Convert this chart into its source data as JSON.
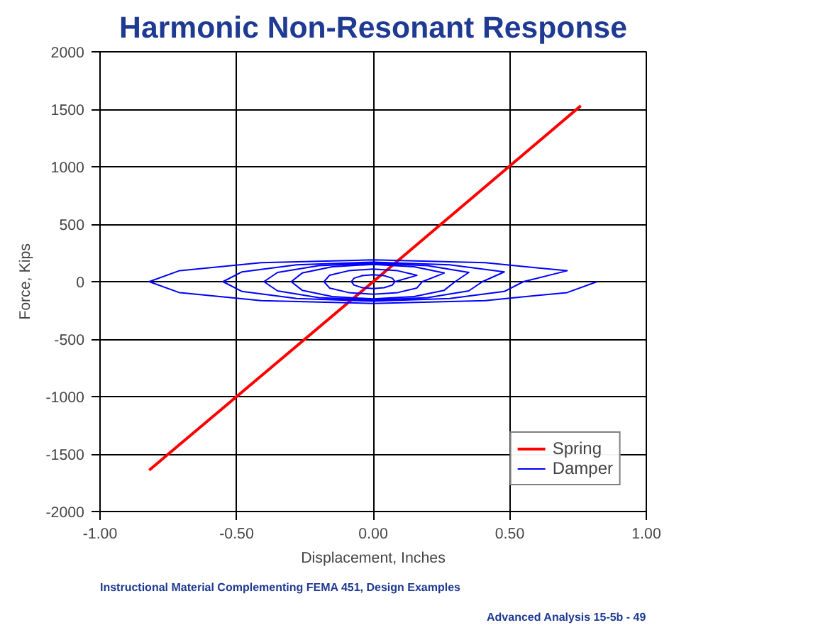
{
  "chart_data": {
    "type": "line",
    "title": "Harmonic Non-Resonant Response",
    "xlabel": "Displacement, Inches",
    "ylabel": "Force, Kips",
    "annotations": [
      "Instructional Material Complementing FEMA 451,  Design Examples",
      "Advanced Analysis 15-5b - 49"
    ],
    "xlim": [
      -1,
      1
    ],
    "ylim": [
      -2000,
      2000
    ],
    "xticks": [
      {
        "value": -1,
        "label": "-1.00"
      },
      {
        "value": -0.5,
        "label": "-0.50"
      },
      {
        "value": 0,
        "label": "0.00"
      },
      {
        "value": 0.5,
        "label": "0.50"
      },
      {
        "value": 1,
        "label": "1.00"
      }
    ],
    "yticks": [
      -2000,
      -1500,
      -1000,
      -500,
      0,
      500,
      1000,
      1500,
      2000
    ],
    "grid": true,
    "legend": "bottom right",
    "line_style": "solid",
    "marker": "none",
    "series": [
      {
        "name": "Spring",
        "color": "#ff0000",
        "x": [
          -0.82,
          0,
          0.76
        ],
        "values": [
          -1640,
          0,
          1530
        ]
      },
      {
        "name": "Damper",
        "color": "#0000ff",
        "x": [
          0.82,
          0.71,
          0.41,
          0,
          -0.41,
          -0.71,
          -0.82,
          -0.71,
          -0.41,
          0,
          0.41,
          0.71,
          0.55,
          0.48,
          0.28,
          0,
          -0.28,
          -0.48,
          -0.55,
          -0.48,
          -0.28,
          0,
          0.28,
          0.48,
          0.4,
          0.35,
          0.2,
          0,
          -0.2,
          -0.35,
          -0.4,
          -0.35,
          -0.2,
          0,
          0.2,
          0.35,
          0.3,
          0.26,
          0.15,
          0,
          -0.15,
          -0.26,
          -0.3,
          -0.26,
          -0.15,
          0,
          0.15,
          0.26,
          0.18,
          0.16,
          0.09,
          0,
          -0.09,
          -0.16,
          -0.18,
          -0.16,
          -0.09,
          0,
          0.09,
          0.16,
          0.08,
          0.07,
          0.04,
          0,
          -0.04,
          -0.07,
          -0.08,
          -0.07,
          -0.04,
          0,
          0.04,
          0.07,
          0.08
        ],
        "values": [
          0,
          -95,
          -165,
          -190,
          -165,
          -95,
          0,
          95,
          165,
          190,
          165,
          95,
          0,
          -85,
          -147,
          -170,
          -147,
          -85,
          0,
          85,
          147,
          170,
          147,
          85,
          0,
          -80,
          -139,
          -160,
          -139,
          -80,
          0,
          80,
          139,
          160,
          139,
          80,
          0,
          -75,
          -130,
          -150,
          -130,
          -75,
          0,
          75,
          130,
          150,
          130,
          75,
          0,
          -55,
          -95,
          -110,
          -95,
          -55,
          0,
          55,
          95,
          110,
          95,
          55,
          0,
          -30,
          -52,
          -60,
          -52,
          -30,
          0,
          30,
          52,
          60,
          52,
          30,
          0
        ]
      }
    ]
  }
}
